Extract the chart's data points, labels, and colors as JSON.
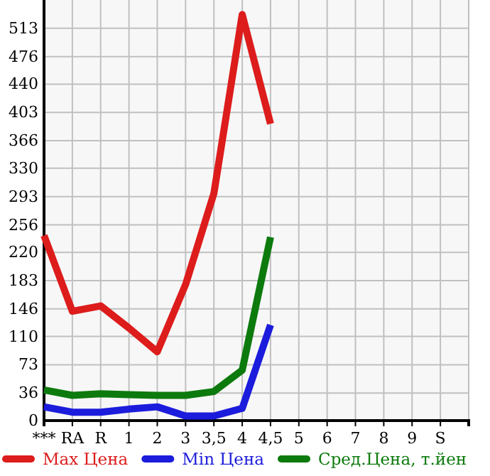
{
  "chart_data": {
    "type": "line",
    "categories": [
      "***",
      "RA",
      "R",
      "1",
      "2",
      "3",
      "3,5",
      "4",
      "4,5",
      "5",
      "6",
      "7",
      "8",
      "9",
      "S"
    ],
    "ylim": [
      0,
      550
    ],
    "yticks": [
      0,
      36,
      73,
      110,
      146,
      183,
      220,
      256,
      293,
      330,
      366,
      403,
      440,
      476,
      513
    ],
    "grid": true,
    "legend": "bottom",
    "line_style": "solid",
    "marker": "none",
    "series": [
      {
        "name": "Max Цена",
        "color": "#dd1c1c",
        "values": [
          242,
          143,
          150,
          121,
          90,
          178,
          297,
          531,
          388,
          null,
          null,
          null,
          null,
          null,
          null
        ]
      },
      {
        "name": "Min Цена",
        "color": "#1c1cdd",
        "values": [
          18,
          11,
          11,
          15,
          18,
          6,
          6,
          16,
          125,
          null,
          null,
          null,
          null,
          null,
          null
        ]
      },
      {
        "name": "Сред.Цена, т.йен",
        "color": "#0d7a0d",
        "values": [
          40,
          33,
          35,
          34,
          33,
          33,
          38,
          66,
          240,
          null,
          null,
          null,
          null,
          null,
          null
        ]
      }
    ]
  }
}
